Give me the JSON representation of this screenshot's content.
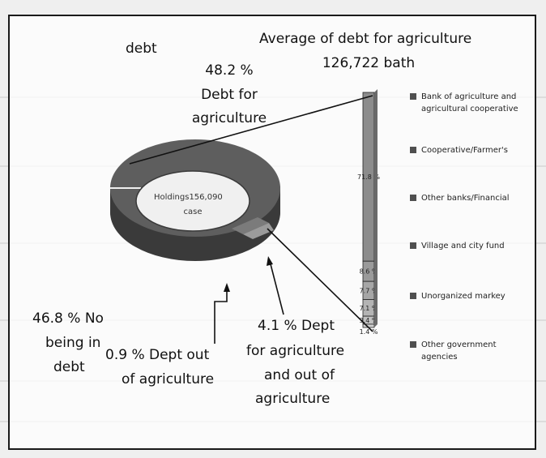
{
  "chart_data": {
    "type": "pie",
    "title_label": "debt",
    "center_label": "Holdings156,090 case",
    "slices": [
      {
        "name": "Debt for agriculture",
        "value": 48.2,
        "label": "48.2 % Debt for agriculture",
        "color": "#5a5a5a"
      },
      {
        "name": "No being in debt",
        "value": 46.8,
        "label": "46.8 % No being in debt",
        "color": "#6c6c6c"
      },
      {
        "name": "Dept for agriculture and out of agriculture",
        "value": 4.1,
        "label": "4.1 % Dept for agriculture and out of agriculture",
        "color": "#7a7a7a"
      },
      {
        "name": "Dept out of agriculture",
        "value": 0.9,
        "label": "0.9 % Dept out of agriculture",
        "color": "#9a9a9a"
      }
    ],
    "bar": {
      "title": "Average of debt for agriculture",
      "subtitle": "126,722 bath",
      "type": "stacked-bar",
      "segments": [
        {
          "name": "Bank of agriculture and agricultural cooperative",
          "value": 71.8,
          "label": "71.8 %"
        },
        {
          "name": "Cooperative/Farmer's",
          "value": 8.6,
          "label": "8.6 %"
        },
        {
          "name": "Other banks/Financial",
          "value": 7.7,
          "label": "7.7 %"
        },
        {
          "name": "Village and city fund",
          "value": 7.1,
          "label": "7.1 %"
        },
        {
          "name": "Unorganized markey",
          "value": 3.4,
          "label": "3.4 %"
        },
        {
          "name": "Other government agencies",
          "value": 1.4,
          "label": "1.4 %"
        }
      ],
      "legend_position": "right"
    }
  },
  "labels": {
    "debt_title": "debt",
    "p482_a": "48.2 %",
    "p482_b": "Debt for",
    "p482_c": "agriculture",
    "p468_a": "46.8 % No",
    "p468_b": "being in",
    "p468_c": "debt",
    "p09_a": "0.9 % Dept out",
    "p09_b": "of agriculture",
    "p41_a": "4.1 % Dept",
    "p41_b": "for agriculture",
    "p41_c": "and out of",
    "p41_d": "agriculture",
    "center_a": "Holdings156,090",
    "center_b": "case",
    "avg_title": "Average of debt for agriculture",
    "avg_value": "126,722 bath"
  },
  "legend": [
    "Bank of agriculture and agricultural cooperative",
    "Cooperative/Farmer's",
    "Other banks/Financial",
    "Village and city fund",
    "Unorganized markey",
    "Other government agencies"
  ],
  "colors": {
    "dark": "#3c3c3c",
    "mid": "#6e6e6e",
    "light": "#9a9a9a",
    "bar": "#8c8c8c",
    "center": "#f0f0f0"
  }
}
